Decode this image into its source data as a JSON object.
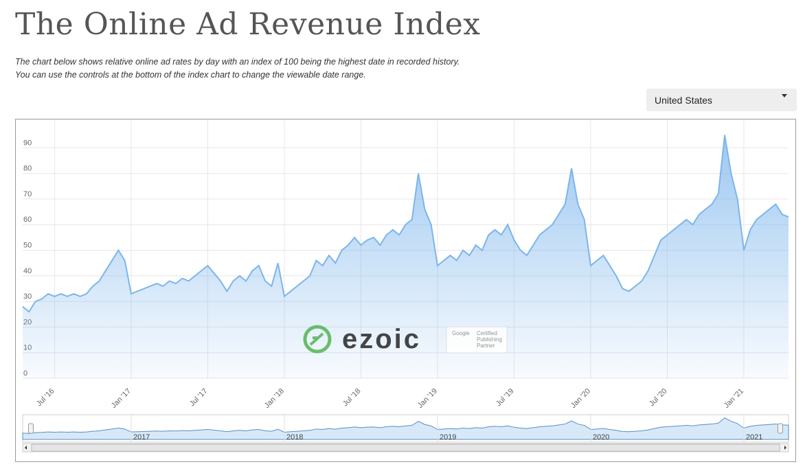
{
  "header": {
    "title": "The Online Ad Revenue Index",
    "description": [
      "The chart below shows relative online ad rates by day with an index of 100 being the highest date in recorded history.",
      "You can use the controls at the bottom of the index chart to change the viewable date range."
    ]
  },
  "dropdown": {
    "selected": "United States"
  },
  "watermark": {
    "brand": "ezoic",
    "badge": [
      "Google",
      "Certified",
      "Publishing",
      "Partner"
    ]
  },
  "chart_data": {
    "type": "area",
    "color": "#7cb5ec",
    "grid": true,
    "ylim": [
      0,
      100
    ],
    "yticks": [
      0,
      10,
      20,
      30,
      40,
      50,
      60,
      70,
      80,
      90
    ],
    "categories": [
      null,
      null,
      null,
      null,
      null,
      "Jul '16",
      null,
      null,
      null,
      null,
      null,
      null,
      null,
      null,
      null,
      null,
      null,
      "Jan '17",
      null,
      null,
      null,
      null,
      null,
      null,
      null,
      null,
      null,
      null,
      null,
      "Jul '17",
      null,
      null,
      null,
      null,
      null,
      null,
      null,
      null,
      null,
      null,
      null,
      "Jan '18",
      null,
      null,
      null,
      null,
      null,
      null,
      null,
      null,
      null,
      null,
      null,
      "Jul '18",
      null,
      null,
      null,
      null,
      null,
      null,
      null,
      null,
      null,
      null,
      null,
      "Jan '19",
      null,
      null,
      null,
      null,
      null,
      null,
      null,
      null,
      null,
      null,
      null,
      "Jul '19",
      null,
      null,
      null,
      null,
      null,
      null,
      null,
      null,
      null,
      null,
      null,
      "Jan '20",
      null,
      null,
      null,
      null,
      null,
      null,
      null,
      null,
      null,
      null,
      null,
      "Jul '20",
      null,
      null,
      null,
      null,
      null,
      null,
      null,
      null,
      null,
      null,
      null,
      "Jan '21",
      null,
      null,
      null,
      null,
      null,
      null,
      null
    ],
    "values": [
      28,
      26,
      30,
      31,
      33,
      32,
      33,
      32,
      33,
      32,
      33,
      36,
      38,
      42,
      46,
      50,
      46,
      33,
      34,
      35,
      36,
      37,
      36,
      38,
      37,
      39,
      38,
      40,
      42,
      44,
      41,
      38,
      34,
      38,
      40,
      38,
      42,
      44,
      38,
      36,
      45,
      32,
      34,
      36,
      38,
      40,
      46,
      44,
      48,
      45,
      50,
      52,
      55,
      52,
      54,
      55,
      52,
      56,
      58,
      56,
      60,
      62,
      80,
      66,
      60,
      44,
      46,
      48,
      46,
      50,
      48,
      52,
      50,
      56,
      58,
      56,
      60,
      54,
      50,
      48,
      52,
      56,
      58,
      60,
      64,
      68,
      82,
      68,
      62,
      44,
      46,
      48,
      44,
      40,
      35,
      34,
      36,
      38,
      42,
      48,
      54,
      56,
      58,
      60,
      62,
      60,
      64,
      66,
      68,
      72,
      95,
      80,
      70,
      50,
      58,
      62,
      64,
      66,
      68,
      64,
      63
    ],
    "navigator_labels": [
      "2017",
      "2018",
      "2019",
      "2020",
      "2021"
    ]
  }
}
